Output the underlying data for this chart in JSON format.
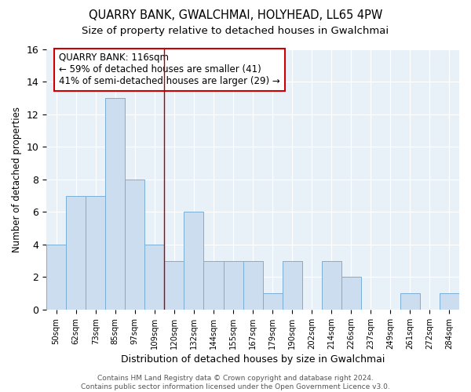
{
  "title": "QUARRY BANK, GWALCHMAI, HOLYHEAD, LL65 4PW",
  "subtitle": "Size of property relative to detached houses in Gwalchmai",
  "xlabel": "Distribution of detached houses by size in Gwalchmai",
  "ylabel": "Number of detached properties",
  "bar_labels": [
    "50sqm",
    "62sqm",
    "73sqm",
    "85sqm",
    "97sqm",
    "109sqm",
    "120sqm",
    "132sqm",
    "144sqm",
    "155sqm",
    "167sqm",
    "179sqm",
    "190sqm",
    "202sqm",
    "214sqm",
    "226sqm",
    "237sqm",
    "249sqm",
    "261sqm",
    "272sqm",
    "284sqm"
  ],
  "bar_values": [
    4,
    7,
    7,
    13,
    8,
    4,
    3,
    6,
    3,
    3,
    3,
    1,
    3,
    0,
    3,
    2,
    0,
    0,
    1,
    0,
    1
  ],
  "bar_color": "#ccddf0",
  "bar_edge_color": "#7bafd4",
  "background_color": "#e8f0f8",
  "annotation_text": "QUARRY BANK: 116sqm\n← 59% of detached houses are smaller (41)\n41% of semi-detached houses are larger (29) →",
  "annotation_box_edge": "#cc0000",
  "red_line_x": 5.5,
  "ylim": [
    0,
    16
  ],
  "yticks": [
    0,
    2,
    4,
    6,
    8,
    10,
    12,
    14,
    16
  ],
  "footnote": "Contains HM Land Registry data © Crown copyright and database right 2024.\nContains public sector information licensed under the Open Government Licence v3.0.",
  "title_fontsize": 10.5,
  "subtitle_fontsize": 9.5,
  "xlabel_fontsize": 9,
  "ylabel_fontsize": 8.5,
  "annotation_fontsize": 8.5,
  "footnote_fontsize": 6.5
}
